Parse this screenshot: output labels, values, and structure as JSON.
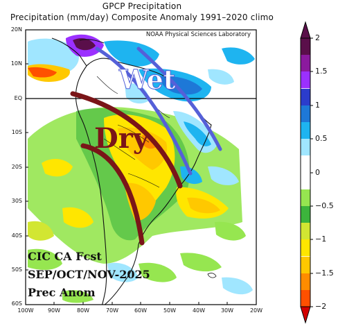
{
  "title": {
    "line1": "GPCP Precipitation",
    "line2": "Precipitation (mm/day) Composite Anomaly 1991–2020 climo"
  },
  "credit": "NOAA Physical Sciences Laboratory",
  "map": {
    "lat_labels": [
      "20N",
      "10N",
      "EQ",
      "10S",
      "20S",
      "30S",
      "40S",
      "50S",
      "60S"
    ],
    "lon_labels": [
      "100W",
      "90W",
      "80W",
      "70W",
      "60W",
      "50W",
      "40W",
      "30W",
      "20W"
    ],
    "region": "South America"
  },
  "colorbar": {
    "labels": [
      "2",
      "1.5",
      "1",
      "0.5",
      "0",
      "−0.5",
      "−1",
      "−1.5",
      "−2"
    ],
    "colors": [
      "#5a0f4a",
      "#8b1a9e",
      "#9b30ff",
      "#2b3ccc",
      "#1e78d7",
      "#1eb4f0",
      "#a0e6ff",
      "#ffffff",
      "#ffffff",
      "#96e650",
      "#3cb43c",
      "#d2e632",
      "#ffe600",
      "#ffc800",
      "#ff8c00",
      "#ff5000",
      "#d20000"
    ]
  },
  "annotations": {
    "wet": "Wet",
    "dry": "Dry",
    "wet_color": "#5560d8",
    "dry_color": "#7a1518"
  },
  "cic": {
    "line1": "CIC CA Fcst",
    "line2": "SEP/OCT/NOV-2025",
    "line3": "Prec Anom"
  }
}
